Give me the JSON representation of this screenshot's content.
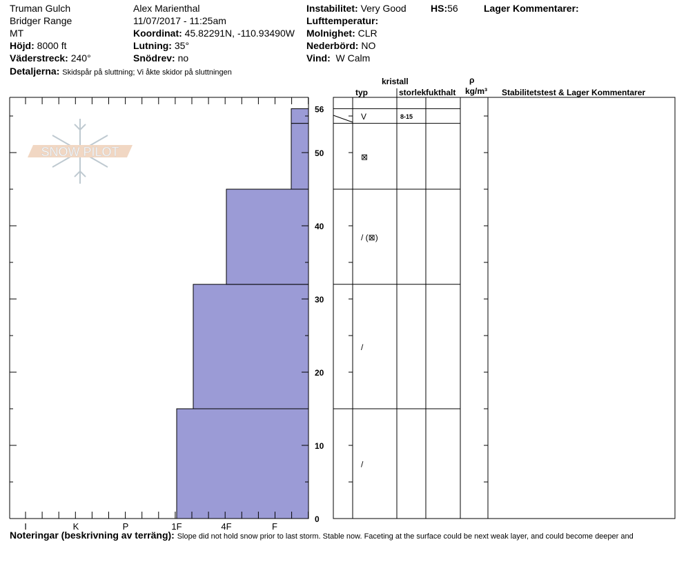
{
  "header": {
    "location": "Truman Gulch",
    "range": "Bridger Range",
    "state": "MT",
    "elevation_label": "Höjd:",
    "elevation": "8000 ft",
    "aspect_label": "Väderstreck:",
    "aspect": "240°",
    "observer": "Alex Marienthal",
    "datetime": "11/07/2017 - 11:25am",
    "coord_label": "Koordinat:",
    "coord": "45.82291N, -110.93490W",
    "slope_label": "Lutning:",
    "slope": "35°",
    "drift_label": "Snödrev:",
    "drift": "no",
    "details_label": "Detaljerna:",
    "details": "Skidspår på sluttning;  Vi åkte skidor på sluttningen",
    "instability_label": "Instabilitet:",
    "instability": "Very Good",
    "hs_label": "HS:",
    "hs": "56",
    "layer_comments_label": "Lager Kommentarer:",
    "airtemp_label": "Lufttemperatur:",
    "sky_label": "Molnighet:",
    "sky": "CLR",
    "precip_label": "Nederbörd:",
    "precip": "NO",
    "wind_label": "Vind:",
    "wind": "W Calm"
  },
  "table_headers": {
    "crystal": "kristall",
    "type": "typ",
    "size": "storlek",
    "moisture": "fukthalt",
    "rho": "ρ",
    "density": "kg/m³",
    "comments": "Stabilitetstest & Lager Kommentarer"
  },
  "notes_label": "Noteringar (beskrivning av terräng):",
  "notes": "Slope did not hold snow prior to last storm. Stable now. Faceting at the surface could be next weak layer, and could become deeper and",
  "logo_text": "SNOW PILOT",
  "colors": {
    "layer_fill": "#9b9bd6"
  },
  "chart_data": {
    "type": "bar",
    "x_categories": [
      "I",
      "K",
      "P",
      "1F",
      "4F",
      "F"
    ],
    "y_ticks": [
      0,
      10,
      20,
      30,
      40,
      50,
      56
    ],
    "ylim": [
      0,
      56
    ],
    "layers": [
      {
        "bottom": 0,
        "top": 15,
        "hardness": "1F",
        "crystal": "/"
      },
      {
        "bottom": 15,
        "top": 32,
        "hardness": "1F+",
        "crystal": "/"
      },
      {
        "bottom": 32,
        "top": 45,
        "hardness": "4F",
        "crystal": "/ (⊠)"
      },
      {
        "bottom": 45,
        "top": 54,
        "hardness": "F+",
        "crystal": "⊠"
      },
      {
        "bottom": 54,
        "top": 56,
        "hardness": "F+",
        "crystal": "V",
        "size": "8-15"
      }
    ]
  }
}
